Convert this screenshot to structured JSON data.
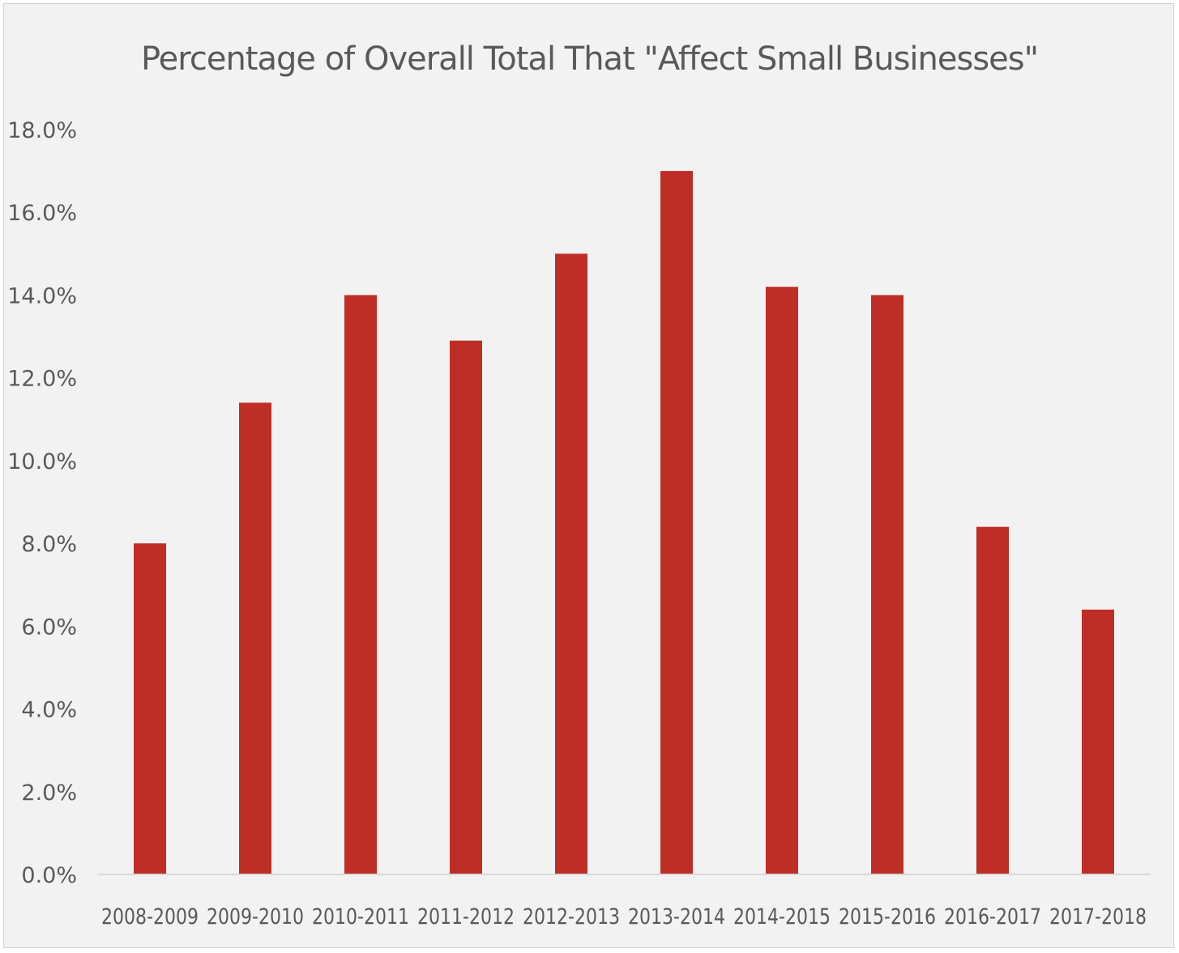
{
  "chart_data": {
    "type": "bar",
    "title": "Percentage of Overall Total That \"Affect Small Businesses\"",
    "xlabel": "",
    "ylabel": "",
    "categories": [
      "2008-2009",
      "2009-2010",
      "2010-2011",
      "2011-2012",
      "2012-2013",
      "2013-2014",
      "2014-2015",
      "2015-2016",
      "2016-2017",
      "2017-2018"
    ],
    "values": [
      8.0,
      11.4,
      14.0,
      12.9,
      15.0,
      17.0,
      14.2,
      14.0,
      8.4,
      6.4
    ],
    "ylim": [
      0,
      18
    ],
    "yticks": [
      0,
      2,
      4,
      6,
      8,
      10,
      12,
      14,
      16,
      18
    ],
    "ytick_labels": [
      "0.0%",
      "2.0%",
      "4.0%",
      "6.0%",
      "8.0%",
      "10.0%",
      "12.0%",
      "14.0%",
      "16.0%",
      "18.0%"
    ],
    "grid": false,
    "legend": "none",
    "bar_color": "#bf2e26",
    "axis_color": "#d9d9d9",
    "text_color": "#595959",
    "background": "#f2f2f2"
  }
}
